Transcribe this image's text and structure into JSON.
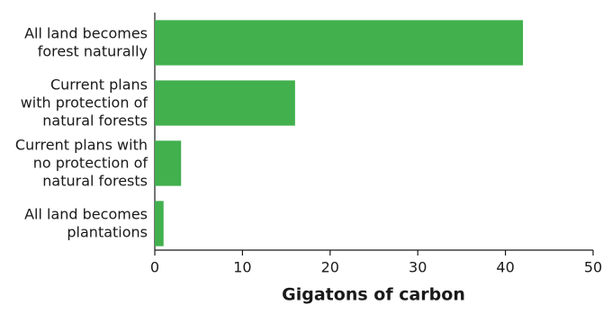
{
  "chart_data": {
    "type": "barh",
    "categories": [
      [
        "All land becomes",
        "forest naturally"
      ],
      [
        "Current plans",
        "with protection of",
        "natural forests"
      ],
      [
        "Current plans with",
        "no protection of",
        "natural forests"
      ],
      [
        "All land becomes",
        "plantations"
      ]
    ],
    "values": [
      42,
      16,
      3,
      1
    ],
    "color": "#41b04d",
    "xlabel": "Gigatons of carbon",
    "xlim": [
      0,
      50
    ],
    "xticks": [
      0,
      10,
      20,
      30,
      40,
      50
    ],
    "grid": false
  }
}
